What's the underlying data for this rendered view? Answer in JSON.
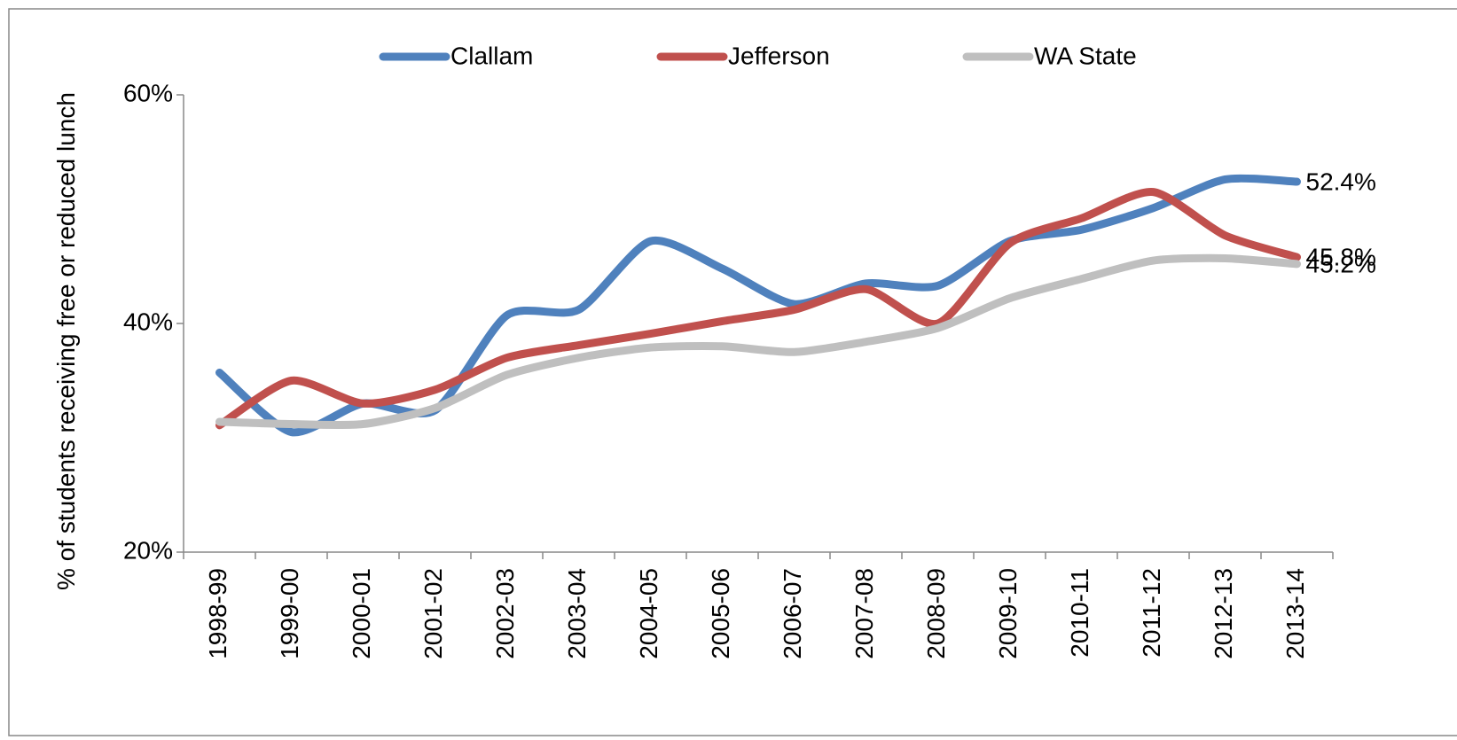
{
  "chart_data": {
    "type": "line",
    "ylabel": "% of students receiving free or reduced lunch",
    "categories": [
      "1998-99",
      "1999-00",
      "2000-01",
      "2001-02",
      "2002-03",
      "2003-04",
      "2004-05",
      "2005-06",
      "2006-07",
      "2007-08",
      "2008-09",
      "2009-10",
      "2010-11",
      "2011-12",
      "2012-13",
      "2013-14"
    ],
    "series": [
      {
        "name": "Clallam",
        "color": "#4f81bd",
        "values": [
          35.7,
          30.5,
          33.0,
          32.4,
          40.7,
          41.2,
          47.2,
          44.8,
          41.7,
          43.5,
          43.3,
          47.2,
          48.2,
          50.1,
          52.6,
          52.4
        ],
        "value_labels": [
          null,
          null,
          null,
          null,
          null,
          null,
          null,
          null,
          null,
          null,
          null,
          null,
          null,
          null,
          null,
          "52.4%"
        ]
      },
      {
        "name": "Jefferson",
        "color": "#c0504d",
        "values": [
          31.1,
          35.0,
          33.0,
          34.2,
          37.0,
          38.1,
          39.1,
          40.2,
          41.2,
          43.0,
          40.0,
          47.0,
          49.2,
          51.5,
          47.7,
          45.8
        ],
        "value_labels": [
          null,
          null,
          null,
          null,
          null,
          null,
          null,
          null,
          null,
          null,
          null,
          null,
          null,
          null,
          null,
          "45.8%"
        ]
      },
      {
        "name": "WA State",
        "color": "#bfbfbf",
        "values": [
          31.4,
          31.2,
          31.2,
          32.6,
          35.5,
          37.0,
          37.9,
          38.0,
          37.5,
          38.4,
          39.6,
          42.2,
          43.9,
          45.5,
          45.7,
          45.2
        ],
        "value_labels": [
          null,
          null,
          null,
          null,
          null,
          null,
          null,
          null,
          null,
          null,
          null,
          null,
          null,
          null,
          null,
          "45.2%"
        ]
      }
    ],
    "ylim": [
      20,
      60
    ],
    "yticks": [
      {
        "value": 20,
        "label": "20%"
      },
      {
        "value": 40,
        "label": "40%"
      },
      {
        "value": 60,
        "label": "60%"
      }
    ],
    "grid": false,
    "legend": "top"
  }
}
